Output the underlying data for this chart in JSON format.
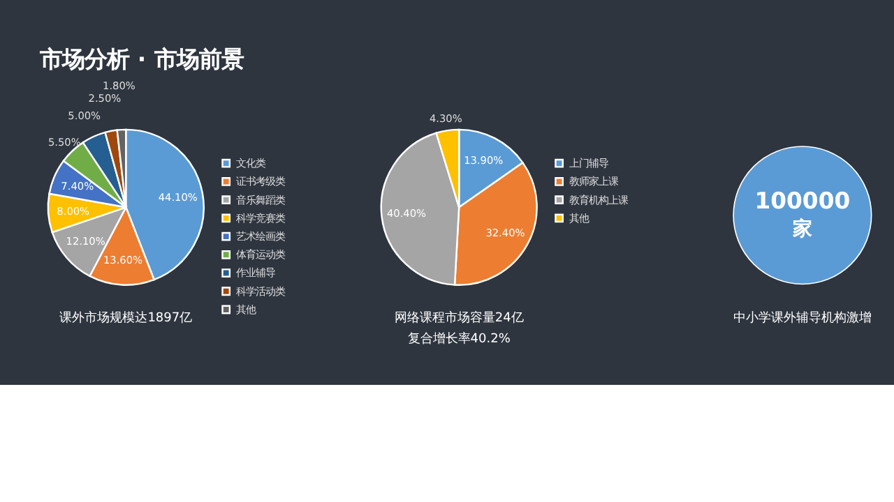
{
  "chart_data": [
    {
      "type": "pie",
      "title": "市场分析 · 市场前景",
      "categories": [
        "文化类",
        "证书考级类",
        "音乐舞蹈类",
        "科学竞赛类",
        "艺术绘画类",
        "体育运动类",
        "作业辅导",
        "科学活动类",
        "其他"
      ],
      "values": [
        44.1,
        13.6,
        12.1,
        8.0,
        7.4,
        5.5,
        5.0,
        2.5,
        1.8
      ],
      "value_labels": [
        "44.10%",
        "13.60%",
        "12.10%",
        "8.00%",
        "7.40%",
        "5.50%",
        "5.00%",
        "2.50%",
        "1.80%"
      ],
      "colors": [
        "#5b9bd5",
        "#ed7d31",
        "#a5a5a5",
        "#ffc000",
        "#4472c4",
        "#70ad47",
        "#255e91",
        "#9e480e",
        "#636363"
      ],
      "legend": "right",
      "annotations": [
        "课外市场规模达1897亿"
      ]
    },
    {
      "type": "pie",
      "categories": [
        "上门辅导",
        "教师家上课",
        "教育机构上课",
        "其他"
      ],
      "values": [
        13.9,
        32.4,
        40.4,
        4.3
      ],
      "value_labels": [
        "13.90%",
        "32.40%",
        "40.40%",
        "4.30%"
      ],
      "colors": [
        "#5b9bd5",
        "#ed7d31",
        "#a5a5a5",
        "#ffc000"
      ],
      "legend": "right",
      "annotations": [
        "网络课程市场容量24亿",
        "复合增长率40.2%"
      ]
    },
    {
      "type": "other",
      "color": "#5b9bd5",
      "annotations": [
        "100000",
        "家",
        "中小学课外辅导机构激增"
      ]
    }
  ]
}
